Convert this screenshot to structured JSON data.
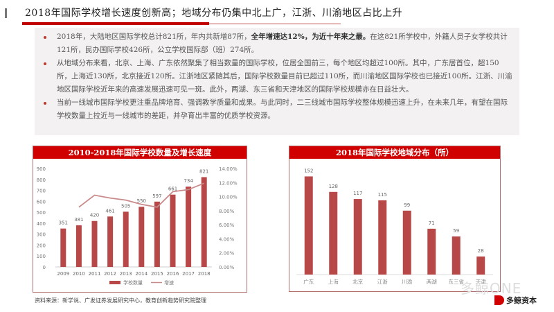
{
  "header": {
    "title": "2018年国际学校增长速度创新高；地域分布仍集中北上广，江浙、川渝地区占比上升"
  },
  "summary": {
    "bullets": [
      {
        "pre": "2018年，大陆地区国际学校总计821所，年内共新增87所，",
        "bold": "全年增速达12%，为近十年来之最。",
        "post": "在这821所学校中，外籍人员子女学校共计121所，民办国际学校426所，公立学校国际部（班）274所。"
      },
      {
        "pre": "从地域分布来看，北京、上海、广东依然聚集了相当数量的国际学校，位居全国前三，每个地区均超过100所。其中，广东居首位，超150所，上海近130所，北京接近120所。江浙地区紧随其后，国际学校数量目前已超过110所，而川渝地区国际学校也已接近100所。江浙、川渝地区国际学校近年来的高速发展迅速可见一斑。此外，两湖、东三省和天津地区的国际学校规模亦在日益壮大。",
        "bold": "",
        "post": ""
      },
      {
        "pre": "当前一线城市国际学校更注重品牌培育、强调教学质量和成果。与此同时，二三线城市国际学校整体规模迅速上升，在未来几年，有望在国际学校数量上拉近与一线城市的差距，并孕育出丰富的优质学校资源。",
        "bold": "",
        "post": ""
      }
    ]
  },
  "source": "资料来源：新学说、广发证券发展研究中心，教育创新趋势研究院整理",
  "watermark": "多鲸ONE",
  "logo": {
    "text": "多鲸资本",
    "sub": "DUOJING CAPITAL"
  },
  "colors": {
    "accent": "#d00000",
    "bar": "#b84848",
    "line": "#c98a8a"
  },
  "chart_data": [
    {
      "type": "bar",
      "title": "2010-2018年国际学校数量及增长速度",
      "categories": [
        "2009",
        "2010",
        "2011",
        "2012",
        "2013",
        "2014",
        "2015",
        "2016",
        "2017",
        "2018"
      ],
      "series": [
        {
          "name": "学校数量",
          "type": "bar",
          "axis": "left",
          "values": [
            351,
            381,
            420,
            461,
            505,
            550,
            597,
            661,
            734,
            821
          ]
        },
        {
          "name": "增速",
          "type": "line",
          "axis": "right",
          "values": [
            null,
            8.5,
            10.2,
            9.8,
            9.5,
            8.9,
            8.5,
            10.7,
            11.0,
            11.9
          ]
        }
      ],
      "ylim": [
        0,
        900
      ],
      "yticks": [
        "0",
        "100",
        "200",
        "300",
        "400",
        "500",
        "600",
        "700",
        "800",
        "900"
      ],
      "y2lim": [
        0,
        14
      ],
      "y2ticks": [
        "0.00%",
        "2.00%",
        "4.00%",
        "6.00%",
        "8.00%",
        "10.00%",
        "12.00%",
        "14.00%"
      ],
      "legend": [
        "学校数量",
        "增速"
      ],
      "legend_position": "bottom",
      "grid": false
    },
    {
      "type": "bar",
      "title": "2018年国际学校地域分布（所）",
      "categories": [
        "广东",
        "上海",
        "北京",
        "江浙",
        "川渝",
        "两湖",
        "东三省",
        "天津"
      ],
      "values": [
        152,
        128,
        117,
        115,
        99,
        71,
        59,
        28
      ],
      "grid": false
    }
  ]
}
